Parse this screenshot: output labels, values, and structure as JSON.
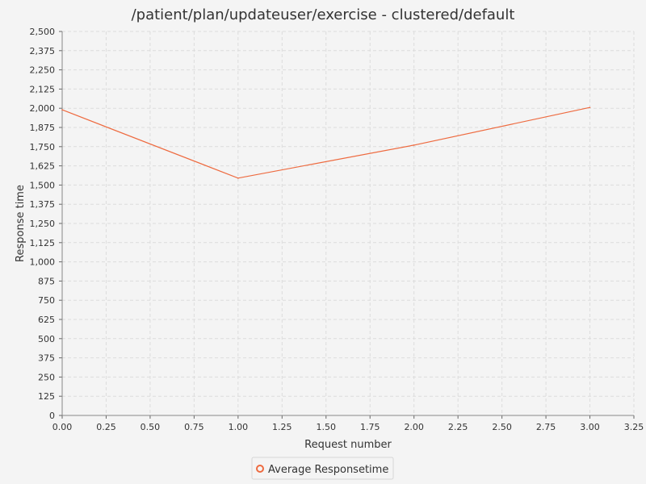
{
  "chart_data": {
    "type": "line",
    "title": "/patient/plan/updateuser/exercise - clustered/default",
    "xlabel": "Request number",
    "ylabel": "Response time",
    "xlim": [
      0,
      3.25
    ],
    "ylim": [
      0,
      2500
    ],
    "x_ticks": [
      "0.00",
      "0.25",
      "0.50",
      "0.75",
      "1.00",
      "1.25",
      "1.50",
      "1.75",
      "2.00",
      "2.25",
      "2.50",
      "2.75",
      "3.00",
      "3.25"
    ],
    "y_ticks": [
      "0",
      "125",
      "250",
      "375",
      "500",
      "625",
      "750",
      "875",
      "1,000",
      "1,125",
      "1,250",
      "1,375",
      "1,500",
      "1,625",
      "1,750",
      "1,875",
      "2,000",
      "2,125",
      "2,250",
      "2,375",
      "2,500"
    ],
    "grid": true,
    "legend_position": "bottom-center",
    "series": [
      {
        "name": "Average Responsetime",
        "color": "#ee6a3f",
        "x": [
          0,
          1,
          2,
          3
        ],
        "y": [
          1990,
          1545,
          1760,
          2005
        ]
      }
    ]
  }
}
